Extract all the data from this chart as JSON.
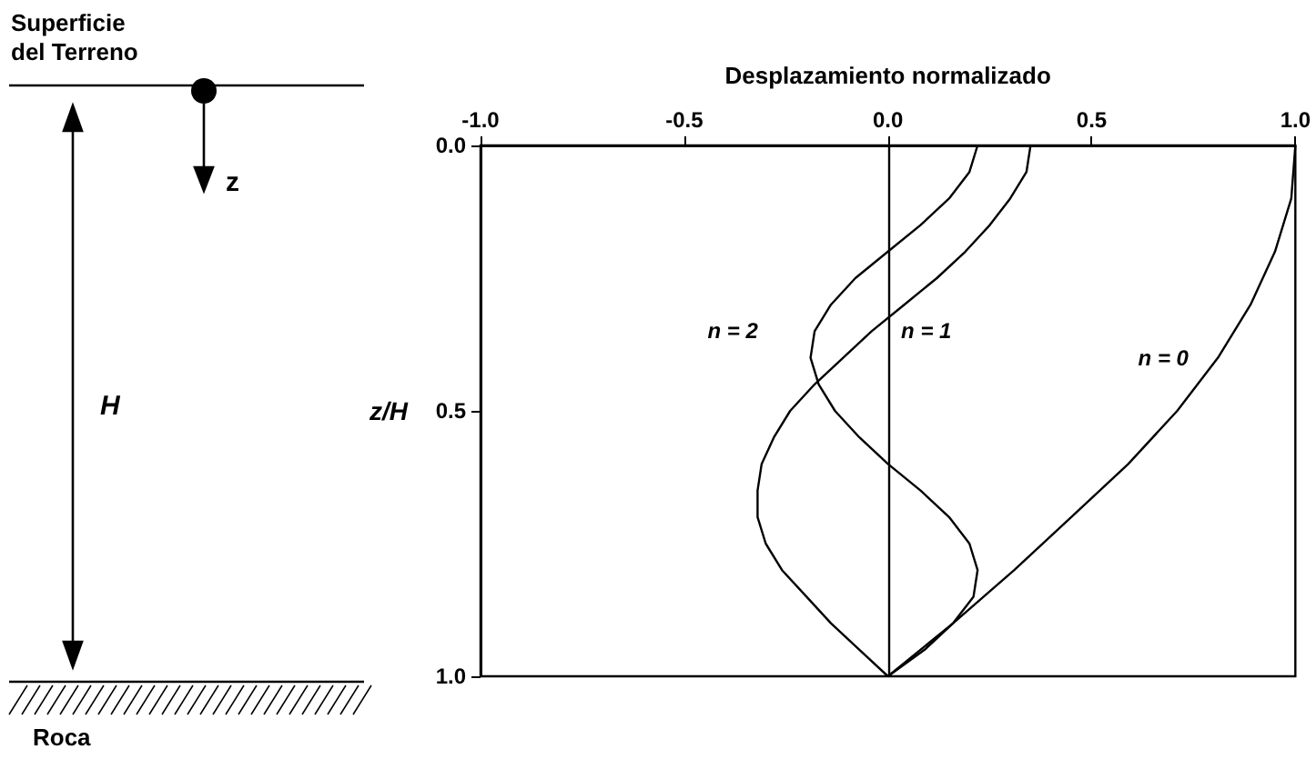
{
  "chart_data": {
    "type": "line",
    "xlabel": "Desplazamiento normalizado",
    "ylabel": "z/H",
    "xlim": [
      -1.0,
      1.0
    ],
    "xticks": [
      {
        "value": -1,
        "label": "-1.0"
      },
      {
        "value": -0.5,
        "label": "-0.5"
      },
      {
        "value": 0,
        "label": "0.0"
      },
      {
        "value": 0.5,
        "label": "0.5"
      },
      {
        "value": 1,
        "label": "1.0"
      }
    ],
    "ylim": [
      1.0,
      0.0
    ],
    "yticks": [
      {
        "value": 0,
        "label": "0.0"
      },
      {
        "value": 0.5,
        "label": "0.5"
      },
      {
        "value": 1,
        "label": "1.0"
      }
    ],
    "grid": false,
    "marker": "none",
    "line_style": "solid",
    "ref_lines": [
      {
        "axis": "x",
        "value": 0,
        "color": "#000000"
      }
    ],
    "annotations": [
      "Superficie del Terreno",
      "z",
      "H",
      "Roca"
    ],
    "series": [
      {
        "name": "n = 0",
        "color": "#000000",
        "x": [
          1.0,
          0.99,
          0.95,
          0.89,
          0.81,
          0.71,
          0.59,
          0.45,
          0.31,
          0.16,
          0.0
        ],
        "values": [
          0,
          0.1,
          0.2,
          0.3,
          0.4,
          0.5,
          0.6,
          0.7,
          0.8,
          0.9,
          1.0
        ]
      },
      {
        "name": "n = 1",
        "color": "#000000",
        "x": [
          0.35,
          0.34,
          0.3,
          0.25,
          0.19,
          0.12,
          0.04,
          -0.04,
          -0.11,
          -0.18,
          -0.24,
          -0.28,
          -0.31,
          -0.32,
          -0.32,
          -0.3,
          -0.26,
          -0.2,
          -0.14,
          -0.07,
          0.0
        ],
        "values": [
          0,
          0.05,
          0.1,
          0.15,
          0.2,
          0.25,
          0.3,
          0.35,
          0.4,
          0.45,
          0.5,
          0.55,
          0.6,
          0.65,
          0.7,
          0.75,
          0.8,
          0.85,
          0.9,
          0.95,
          1.0
        ]
      },
      {
        "name": "n = 2",
        "color": "#000000",
        "x": [
          0.22,
          0.2,
          0.15,
          0.08,
          0.0,
          -0.08,
          -0.14,
          -0.18,
          -0.19,
          -0.17,
          -0.13,
          -0.07,
          0.0,
          0.08,
          0.15,
          0.2,
          0.22,
          0.21,
          0.16,
          0.09,
          0.0
        ],
        "values": [
          0,
          0.05,
          0.1,
          0.15,
          0.2,
          0.25,
          0.3,
          0.35,
          0.4,
          0.45,
          0.5,
          0.55,
          0.6,
          0.65,
          0.7,
          0.75,
          0.8,
          0.85,
          0.9,
          0.95,
          1.0
        ]
      }
    ]
  }
}
